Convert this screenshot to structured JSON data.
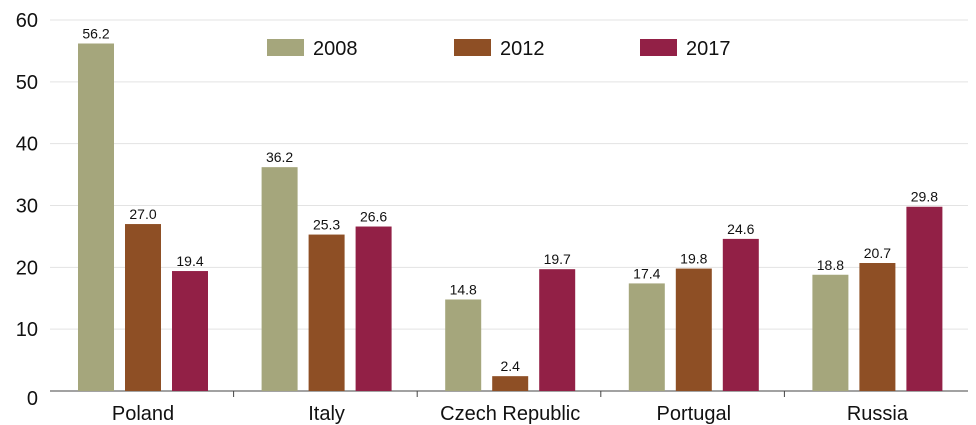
{
  "chart_data": {
    "type": "bar",
    "categories": [
      "Poland",
      "Italy",
      "Czech Republic",
      "Portugal",
      "Russia"
    ],
    "series": [
      {
        "name": "2008",
        "color": "#a5a67c",
        "values": [
          56.2,
          36.2,
          14.8,
          17.4,
          18.8
        ],
        "labels": [
          "56.2",
          "36.2",
          "14.8",
          "17.4",
          "18.8"
        ]
      },
      {
        "name": "2012",
        "color": "#8e4f25",
        "values": [
          27.0,
          25.3,
          2.4,
          19.8,
          20.7
        ],
        "labels": [
          "27.0",
          "25.3",
          "2.4",
          "19.8",
          "20.7"
        ]
      },
      {
        "name": "2017",
        "color": "#922046",
        "values": [
          19.4,
          26.6,
          19.7,
          24.6,
          29.8
        ],
        "labels": [
          "19.4",
          "26.6",
          "19.7",
          "24.6",
          "29.8"
        ]
      }
    ],
    "ylim": [
      0,
      60
    ],
    "yticks": [
      "0",
      "10",
      "20",
      "30",
      "40",
      "50",
      "60"
    ],
    "grid": true,
    "legend_position": "top",
    "title": "",
    "xlabel": "",
    "ylabel": ""
  }
}
